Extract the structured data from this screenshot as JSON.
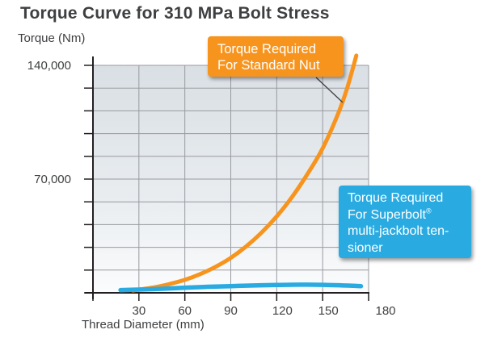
{
  "page": {
    "title": "Torque Curve for 310 MPa Bolt Stress"
  },
  "colors": {
    "standard_nut_orange": "#F7941E",
    "superbolt_blue": "#29ABE2",
    "grid_gray": "#989ba0",
    "axis_black": "#231f20",
    "text_dark": "#3e3f41",
    "plot_gradient_top": "#d9dfe4",
    "plot_gradient_bottom": "#fbfcfd"
  },
  "chart_data": {
    "type": "line",
    "title": "Torque Curve for 310 MPa Bolt Stress",
    "xlabel": "Thread Diameter (mm)",
    "ylabel": "Torque (Nm)",
    "xlim": [
      0,
      180
    ],
    "ylim": [
      0,
      140000
    ],
    "grid": true,
    "x_grid_step": 30,
    "y_grid_step": 14000,
    "x_ticks": [
      {
        "value": 30,
        "label": "30"
      },
      {
        "value": 60,
        "label": "60"
      },
      {
        "value": 90,
        "label": "90"
      },
      {
        "value": 120,
        "label": "120"
      },
      {
        "value": 150,
        "label": "150"
      },
      {
        "value": 180,
        "label": "180"
      }
    ],
    "y_ticks": [
      {
        "value": 70000,
        "label": "70,000"
      },
      {
        "value": 140000,
        "label": "140,000"
      }
    ],
    "series": [
      {
        "name": "Torque Required For Standard Nut",
        "color": "#F7941E",
        "x": [
          26,
          40,
          50,
          60,
          70,
          80,
          90,
          100,
          110,
          120,
          130,
          140,
          150,
          160,
          166,
          172
        ],
        "y": [
          1500,
          3400,
          5400,
          8000,
          11500,
          16000,
          21500,
          28500,
          37000,
          47000,
          59000,
          73000,
          89000,
          110000,
          126000,
          146000
        ]
      },
      {
        "name": "Torque Required For Superbolt multi-jackbolt tensioner",
        "color": "#29ABE2",
        "x": [
          18,
          30,
          45,
          60,
          75,
          90,
          105,
          120,
          135,
          150,
          162,
          170,
          175
        ],
        "y": [
          1700,
          2000,
          2500,
          3200,
          3700,
          4100,
          4500,
          4800,
          5000,
          4900,
          4600,
          4300,
          4100
        ]
      }
    ],
    "annotations": [
      {
        "id": "standard-nut",
        "lines": [
          "Torque Required",
          "For Standard Nut"
        ],
        "color": "#F7941E"
      },
      {
        "id": "superbolt",
        "lines": [
          "Torque Required",
          "For Superbolt",
          "multi-jackbolt ten-",
          "sioner"
        ],
        "sup": "®",
        "color": "#29ABE2"
      }
    ]
  }
}
